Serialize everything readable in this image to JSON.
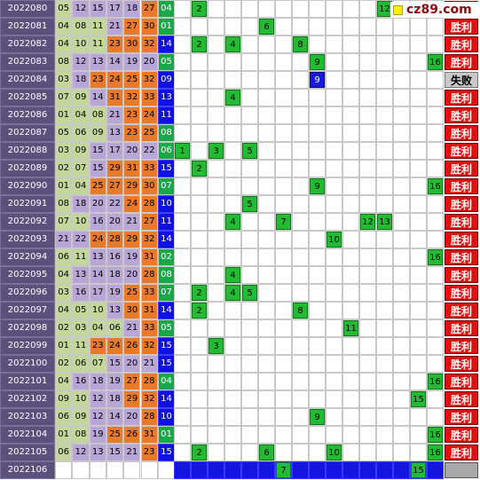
{
  "rows": [
    {
      "issue": "2022080",
      "nums": [
        "05",
        "12",
        "15",
        "17",
        "18",
        "27",
        "04"
      ],
      "hits": [
        {
          "col": 1,
          "label": "2"
        },
        {
          "col": 12,
          "label": "12"
        }
      ],
      "result": "胜利"
    },
    {
      "issue": "2022081",
      "nums": [
        "04",
        "08",
        "11",
        "21",
        "27",
        "30",
        "01"
      ],
      "hits": [
        {
          "col": 5,
          "label": "6"
        }
      ],
      "result": "胜利"
    },
    {
      "issue": "2022082",
      "nums": [
        "04",
        "10",
        "11",
        "23",
        "30",
        "32",
        "14"
      ],
      "hits": [
        {
          "col": 1,
          "label": "2"
        },
        {
          "col": 3,
          "label": "4"
        },
        {
          "col": 7,
          "label": "8"
        }
      ],
      "result": "胜利"
    },
    {
      "issue": "2022083",
      "nums": [
        "08",
        "12",
        "13",
        "14",
        "19",
        "20",
        "05"
      ],
      "hits": [
        {
          "col": 8,
          "label": "9"
        },
        {
          "col": 15,
          "label": "16"
        }
      ],
      "result": "胜利"
    },
    {
      "issue": "2022084",
      "nums": [
        "03",
        "18",
        "23",
        "24",
        "25",
        "32",
        "09"
      ],
      "hits": [
        {
          "col": 8,
          "label": "9",
          "blue": true
        }
      ],
      "result": "失败"
    },
    {
      "issue": "2022085",
      "nums": [
        "07",
        "09",
        "14",
        "31",
        "32",
        "33",
        "13"
      ],
      "hits": [
        {
          "col": 3,
          "label": "4"
        }
      ],
      "result": "胜利"
    },
    {
      "issue": "2022086",
      "nums": [
        "01",
        "04",
        "08",
        "21",
        "23",
        "24",
        "11"
      ],
      "hits": [],
      "result": "胜利"
    },
    {
      "issue": "2022087",
      "nums": [
        "05",
        "06",
        "09",
        "13",
        "23",
        "25",
        "08"
      ],
      "hits": [],
      "result": "胜利"
    },
    {
      "issue": "2022088",
      "nums": [
        "03",
        "09",
        "15",
        "17",
        "20",
        "22",
        "06"
      ],
      "hits": [
        {
          "col": 0,
          "label": "1"
        },
        {
          "col": 2,
          "label": "3"
        },
        {
          "col": 4,
          "label": "5"
        }
      ],
      "result": "胜利"
    },
    {
      "issue": "2022089",
      "nums": [
        "02",
        "07",
        "15",
        "29",
        "31",
        "33",
        "15"
      ],
      "hits": [
        {
          "col": 1,
          "label": "2"
        }
      ],
      "result": "胜利"
    },
    {
      "issue": "2022090",
      "nums": [
        "01",
        "04",
        "25",
        "27",
        "29",
        "30",
        "07"
      ],
      "hits": [
        {
          "col": 8,
          "label": "9"
        },
        {
          "col": 15,
          "label": "16"
        }
      ],
      "result": "胜利"
    },
    {
      "issue": "2022091",
      "nums": [
        "08",
        "18",
        "20",
        "22",
        "24",
        "28",
        "10"
      ],
      "hits": [
        {
          "col": 4,
          "label": "5"
        }
      ],
      "result": "胜利"
    },
    {
      "issue": "2022092",
      "nums": [
        "07",
        "10",
        "16",
        "20",
        "21",
        "27",
        "11"
      ],
      "hits": [
        {
          "col": 3,
          "label": "4"
        },
        {
          "col": 6,
          "label": "7"
        },
        {
          "col": 11,
          "label": "12"
        },
        {
          "col": 12,
          "label": "13"
        }
      ],
      "result": "胜利"
    },
    {
      "issue": "2022093",
      "nums": [
        "21",
        "22",
        "24",
        "28",
        "29",
        "32",
        "14"
      ],
      "hits": [
        {
          "col": 9,
          "label": "10"
        }
      ],
      "result": "胜利"
    },
    {
      "issue": "2022094",
      "nums": [
        "06",
        "11",
        "13",
        "16",
        "19",
        "31",
        "02"
      ],
      "hits": [
        {
          "col": 15,
          "label": "16"
        }
      ],
      "result": "胜利"
    },
    {
      "issue": "2022095",
      "nums": [
        "04",
        "13",
        "14",
        "18",
        "20",
        "28",
        "08"
      ],
      "hits": [
        {
          "col": 3,
          "label": "4"
        }
      ],
      "result": "胜利"
    },
    {
      "issue": "2022096",
      "nums": [
        "03",
        "16",
        "17",
        "19",
        "25",
        "33",
        "07"
      ],
      "hits": [
        {
          "col": 1,
          "label": "2"
        },
        {
          "col": 3,
          "label": "4"
        },
        {
          "col": 4,
          "label": "5"
        }
      ],
      "result": "胜利"
    },
    {
      "issue": "2022097",
      "nums": [
        "04",
        "05",
        "10",
        "13",
        "30",
        "31",
        "14"
      ],
      "hits": [
        {
          "col": 1,
          "label": "2"
        },
        {
          "col": 7,
          "label": "8"
        }
      ],
      "result": "胜利"
    },
    {
      "issue": "2022098",
      "nums": [
        "02",
        "03",
        "04",
        "06",
        "21",
        "33",
        "05"
      ],
      "hits": [
        {
          "col": 10,
          "label": "11"
        }
      ],
      "result": "胜利"
    },
    {
      "issue": "2022099",
      "nums": [
        "01",
        "11",
        "23",
        "24",
        "26",
        "32",
        "15"
      ],
      "hits": [
        {
          "col": 2,
          "label": "3"
        }
      ],
      "result": "胜利"
    },
    {
      "issue": "2022100",
      "nums": [
        "02",
        "06",
        "07",
        "15",
        "20",
        "21",
        "15"
      ],
      "hits": [],
      "result": "胜利"
    },
    {
      "issue": "2022101",
      "nums": [
        "04",
        "16",
        "18",
        "19",
        "27",
        "28",
        "04"
      ],
      "hits": [
        {
          "col": 15,
          "label": "16"
        }
      ],
      "result": "胜利"
    },
    {
      "issue": "2022102",
      "nums": [
        "09",
        "10",
        "12",
        "18",
        "29",
        "32",
        "14"
      ],
      "hits": [
        {
          "col": 14,
          "label": "15"
        }
      ],
      "result": "胜利"
    },
    {
      "issue": "2022103",
      "nums": [
        "06",
        "09",
        "12",
        "14",
        "20",
        "28",
        "10"
      ],
      "hits": [
        {
          "col": 8,
          "label": "9"
        }
      ],
      "result": "胜利"
    },
    {
      "issue": "2022104",
      "nums": [
        "01",
        "08",
        "19",
        "25",
        "26",
        "31",
        "01"
      ],
      "hits": [
        {
          "col": 15,
          "label": "16"
        }
      ],
      "result": "胜利"
    },
    {
      "issue": "2022105",
      "nums": [
        "06",
        "12",
        "13",
        "15",
        "21",
        "23",
        "15"
      ],
      "hits": [
        {
          "col": 1,
          "label": "2"
        },
        {
          "col": 5,
          "label": "6"
        },
        {
          "col": 9,
          "label": "10"
        },
        {
          "col": 15,
          "label": "16"
        }
      ],
      "result": "胜利"
    }
  ],
  "last_row": {
    "issue": "2022106",
    "hits": [
      {
        "col": 6,
        "label": "7"
      },
      {
        "col": 14,
        "label": "15"
      }
    ]
  },
  "logo_text": "cz89.com",
  "colors": {
    "issue_bg": "#5c507c",
    "green": "#c3d79b",
    "lavender": "#b7a6d6",
    "orange": "#e87a2a",
    "blue": "#1010e0",
    "hit_green": "#22bb33",
    "win_red": "#dd1111",
    "lose_gray": "#c8c8c8"
  }
}
